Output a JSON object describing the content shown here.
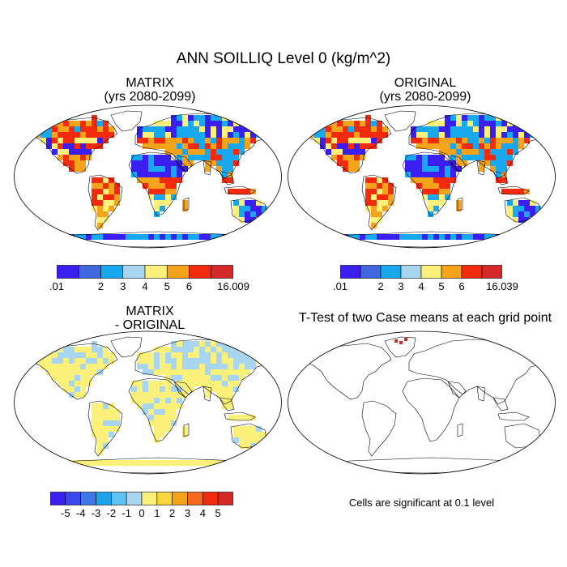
{
  "title": "ANN SOILLIQ Level 0 (kg/m^2)",
  "panels": {
    "matrix": {
      "title_line1": "MATRIX",
      "title_line2": "(yrs 2080-2099)"
    },
    "original": {
      "title_line1": "ORIGINAL",
      "title_line2": "(yrs 2080-2099)"
    },
    "diff": {
      "title_line1": "MATRIX",
      "title_line2": "- ORIGINAL"
    },
    "ttest": {
      "title": "T-Test of two Case means at each grid point",
      "note": "Cells are significant at 0.1 level"
    }
  },
  "colorbars": {
    "matrix": {
      "colors": [
        "#3b1ef0",
        "#3f68e0",
        "#18a8f0",
        "#a8d6f0",
        "#fbf07a",
        "#f6a31c",
        "#f42a0c",
        "#d52828"
      ],
      "labels": [
        ".01",
        "2",
        "3",
        "4",
        "5",
        "6",
        "16.009"
      ]
    },
    "original": {
      "colors": [
        "#3b1ef0",
        "#3f68e0",
        "#18a8f0",
        "#a8d6f0",
        "#fbf07a",
        "#f6a31c",
        "#f42a0c",
        "#d52828"
      ],
      "labels": [
        ".01",
        "2",
        "3",
        "4",
        "5",
        "6",
        "16.039"
      ]
    },
    "diff": {
      "colors": [
        "#3b1ef0",
        "#3a48ec",
        "#3f78e6",
        "#1ca3ee",
        "#5ec3f2",
        "#a8d6f0",
        "#fbf07a",
        "#fbd53c",
        "#f6a31c",
        "#f56a1a",
        "#f42a0c",
        "#d52828"
      ],
      "labels": [
        "-5",
        "-4",
        "-3",
        "-2",
        "-1",
        "0",
        "1",
        "2",
        "3",
        "4",
        "5"
      ]
    }
  },
  "map_colors": {
    "ocean": "#ffffff",
    "wet": "#3b1ef0",
    "moist": "#18a8f0",
    "mid": "#fbf07a",
    "dry": "#f6a31c",
    "very_dry": "#f42a0c",
    "diff_pos": "#fbf07a",
    "diff_neg": "#a8d6f0",
    "significant": "#d52828"
  }
}
